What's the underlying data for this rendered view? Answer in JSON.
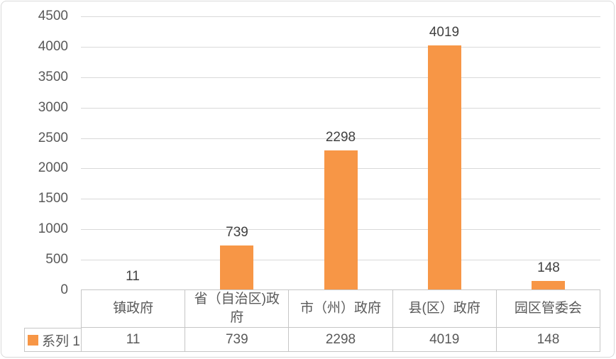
{
  "chart_data": {
    "type": "bar",
    "title": "",
    "xlabel": "",
    "ylabel": "",
    "categories": [
      "镇政府",
      "省（自治区)政府",
      "市（州）政府",
      "县(区）政府",
      "园区管委会"
    ],
    "series": [
      {
        "name": "系列 1",
        "values": [
          11,
          739,
          2298,
          4019,
          148
        ]
      }
    ],
    "data_labels": [
      "11",
      "739",
      "2298",
      "4019",
      "148"
    ],
    "table_values": [
      "11",
      "739",
      "2298",
      "4019",
      "148"
    ],
    "ylim": [
      0,
      4500
    ],
    "yticks": [
      0,
      500,
      1000,
      1500,
      2000,
      2500,
      3000,
      3500,
      4000,
      4500
    ],
    "grid": true,
    "legend": {
      "label": "系列 1",
      "position": "data-table-row"
    },
    "colors": {
      "bar": "#F79646",
      "gridline": "#D9D9D9",
      "table_border": "#C6C6C6",
      "axis_text": "#595959",
      "data_label_text": "#404040",
      "background": "#FFFFFF",
      "canvas_border": "#D9D9D9"
    }
  }
}
